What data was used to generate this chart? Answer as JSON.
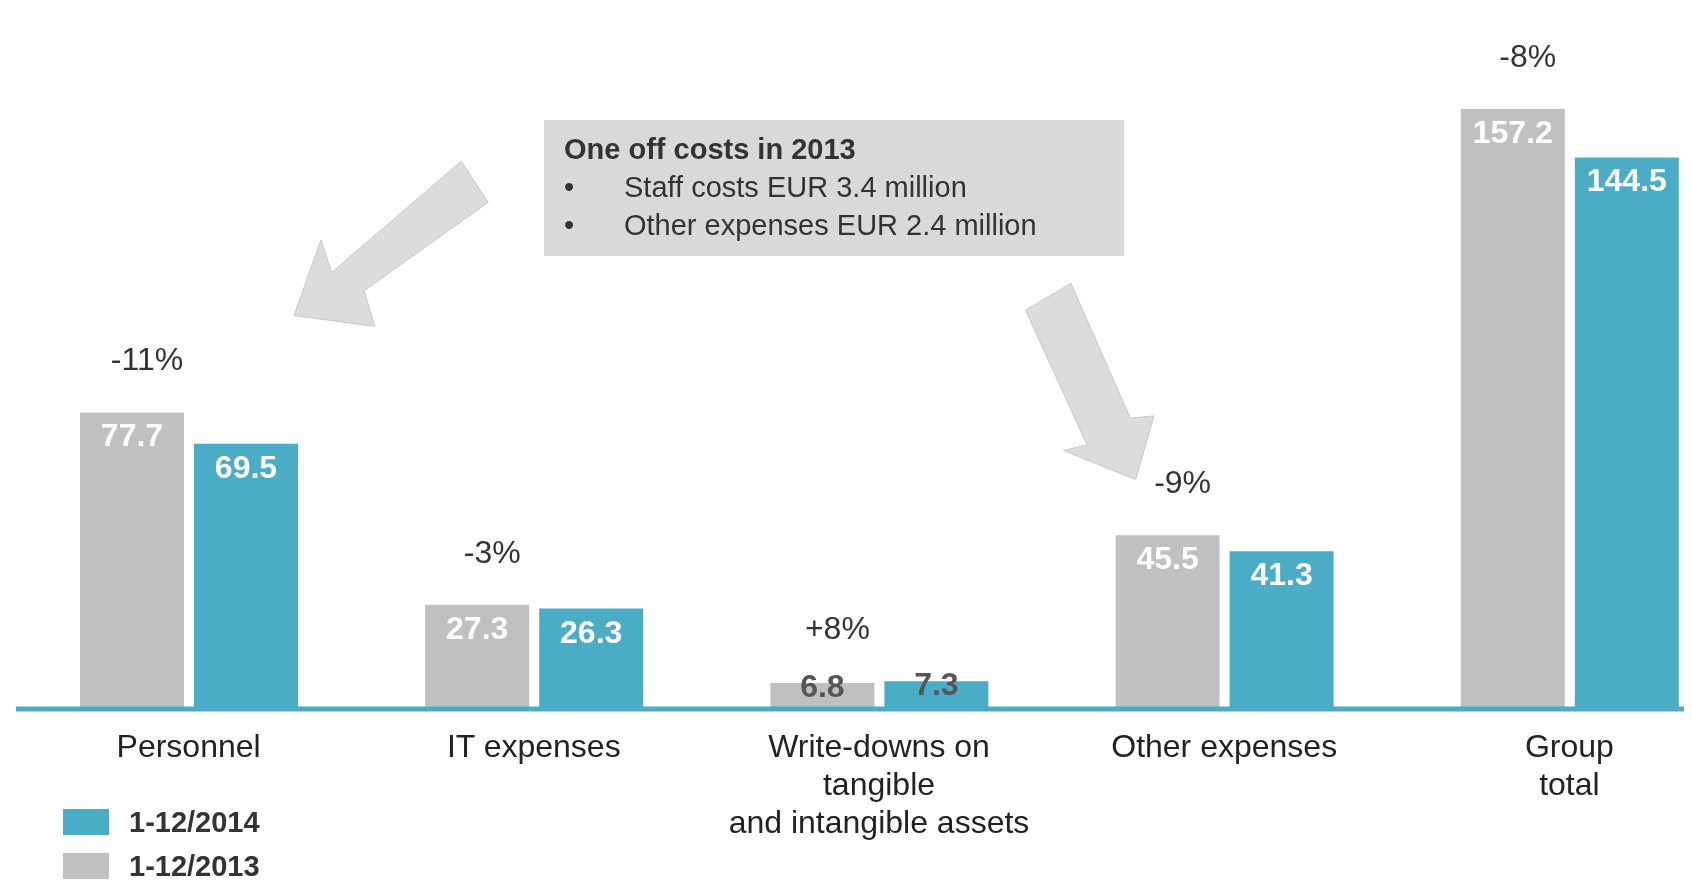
{
  "chart_data": {
    "type": "bar",
    "categories": [
      "Personnel",
      "IT expenses",
      "Write-downs on\ntangible\nand intangible assets",
      "Other expenses",
      "Group\ntotal"
    ],
    "series": [
      {
        "name": "1-12/2013",
        "color": "#c0c0c0",
        "values": [
          77.7,
          27.3,
          6.8,
          45.5,
          157.2
        ]
      },
      {
        "name": "1-12/2014",
        "color": "#4bacc6",
        "values": [
          69.5,
          26.3,
          7.3,
          41.3,
          144.5
        ]
      }
    ],
    "tick_labels": "x",
    "data_labels": true,
    "legend": "bottom left",
    "grid": false,
    "annotations": [
      {
        "text": "-11%",
        "x": "Personnel",
        "y": 77.7
      },
      {
        "text": "-3%",
        "x": "IT expenses",
        "y": 27.3
      },
      {
        "text": "+8%",
        "x": "Write-downs on\ntangible\nand intangible assets",
        "y": 7.3
      },
      {
        "text": "-9%",
        "x": "Other expenses",
        "y": 45.5
      },
      {
        "text": "-8%",
        "x": "Group\ntotal",
        "y": 157.2
      },
      "One off costs in 2013",
      "•\tStaff costs EUR 3.4 million",
      "•\tOther expenses EUR 2.4 million"
    ]
  }
}
